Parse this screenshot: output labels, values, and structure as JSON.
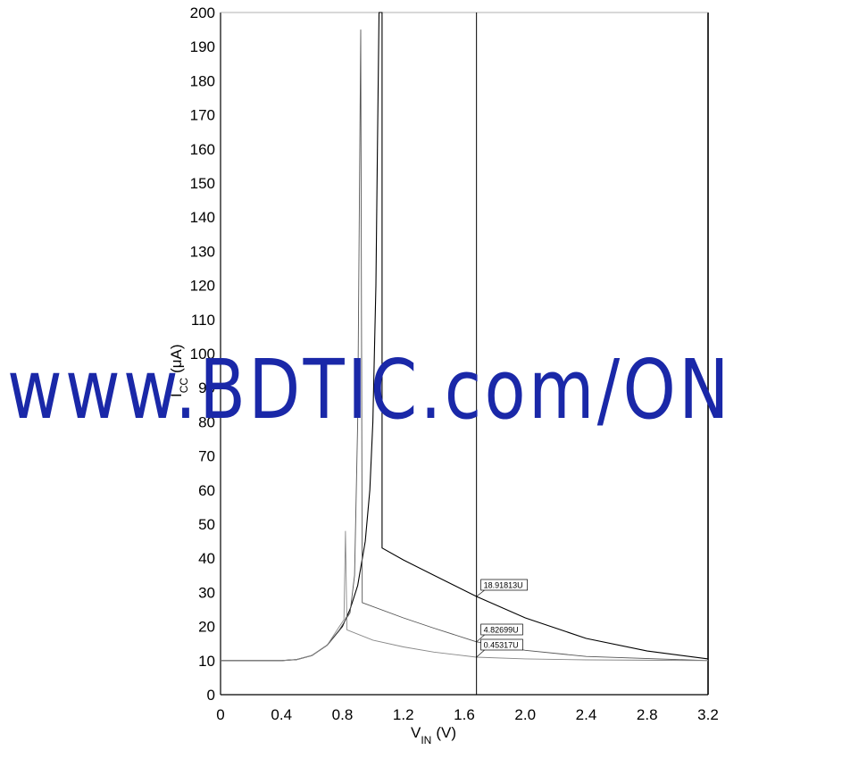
{
  "chart_data": {
    "type": "line",
    "xlabel": "V",
    "xlabel_sub": "IN",
    "xlabel_unit": "(V)",
    "ylabel": "I",
    "ylabel_sub": "CC",
    "ylabel_unit": "(μA)",
    "xlim": [
      0,
      3.2
    ],
    "ylim": [
      0,
      200
    ],
    "xticks": [
      "0",
      "0.4",
      "0.8",
      "1.2",
      "1.6",
      "2.0",
      "2.4",
      "2.8",
      "3.2"
    ],
    "yticks": [
      "0",
      "10",
      "20",
      "30",
      "40",
      "50",
      "60",
      "70",
      "80",
      "90",
      "100",
      "110",
      "120",
      "130",
      "140",
      "150",
      "160",
      "170",
      "180",
      "190",
      "200"
    ],
    "cursor_x": 1.68,
    "series": [
      {
        "color": "#000000",
        "points": [
          [
            0,
            10
          ],
          [
            0.4,
            10
          ],
          [
            0.5,
            10.3
          ],
          [
            0.6,
            11.5
          ],
          [
            0.7,
            14.5
          ],
          [
            0.8,
            20
          ],
          [
            0.85,
            25
          ],
          [
            0.9,
            32
          ],
          [
            0.95,
            45
          ],
          [
            0.98,
            60
          ],
          [
            1.0,
            80
          ],
          [
            1.02,
            120
          ],
          [
            1.03,
            160
          ],
          [
            1.04,
            200
          ],
          [
            1.06,
            200
          ],
          [
            1.06,
            43
          ],
          [
            1.2,
            39.5
          ],
          [
            1.4,
            35
          ],
          [
            1.68,
            28.8
          ],
          [
            2.0,
            22.5
          ],
          [
            2.4,
            16.5
          ],
          [
            2.8,
            12.8
          ],
          [
            3.2,
            10.5
          ]
        ]
      },
      {
        "color": "#555555",
        "points": [
          [
            0,
            10
          ],
          [
            0.4,
            10
          ],
          [
            0.5,
            10.3
          ],
          [
            0.6,
            11.5
          ],
          [
            0.7,
            14.5
          ],
          [
            0.78,
            19
          ],
          [
            0.85,
            24
          ],
          [
            0.88,
            35
          ],
          [
            0.9,
            80
          ],
          [
            0.92,
            195
          ],
          [
            0.93,
            27
          ],
          [
            1.2,
            22.5
          ],
          [
            1.4,
            19.5
          ],
          [
            1.68,
            15.5
          ],
          [
            2.0,
            13
          ],
          [
            2.4,
            11.2
          ],
          [
            3.2,
            10
          ]
        ]
      },
      {
        "color": "#888888",
        "points": [
          [
            0,
            10
          ],
          [
            0.4,
            10
          ],
          [
            0.5,
            10.3
          ],
          [
            0.6,
            11.5
          ],
          [
            0.7,
            14.5
          ],
          [
            0.78,
            20
          ],
          [
            0.81,
            22
          ],
          [
            0.82,
            48
          ],
          [
            0.83,
            19
          ],
          [
            1.0,
            16
          ],
          [
            1.2,
            14
          ],
          [
            1.4,
            12.5
          ],
          [
            1.68,
            11
          ],
          [
            2.0,
            10.5
          ],
          [
            2.4,
            10.2
          ],
          [
            3.2,
            10
          ]
        ]
      }
    ],
    "annotations": [
      {
        "text": "18.91813U",
        "x": 1.68,
        "y": 28.8
      },
      {
        "text": "4.82699U",
        "x": 1.68,
        "y": 15.5
      },
      {
        "text": "0.45317U",
        "x": 1.68,
        "y": 11
      }
    ]
  },
  "watermark": {
    "text": "www.BDTIC.com/ON"
  }
}
